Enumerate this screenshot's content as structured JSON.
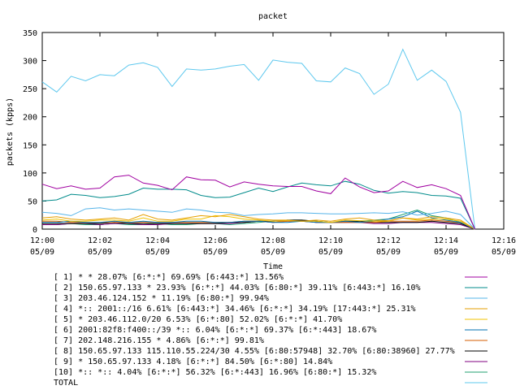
{
  "chart_data": {
    "type": "line",
    "title": "packet",
    "xlabel": "Time",
    "ylabel": "packets (kpps)",
    "ylim": [
      0,
      350
    ],
    "yticks": [
      0,
      50,
      100,
      150,
      200,
      250,
      300,
      350
    ],
    "xlim": [
      "12:00",
      "12:16"
    ],
    "xticks": [
      {
        "time": "12:00",
        "date": "05/09"
      },
      {
        "time": "12:02",
        "date": "05/09"
      },
      {
        "time": "12:04",
        "date": "05/09"
      },
      {
        "time": "12:06",
        "date": "05/09"
      },
      {
        "time": "12:08",
        "date": "05/09"
      },
      {
        "time": "12:10",
        "date": "05/09"
      },
      {
        "time": "12:12",
        "date": "05/09"
      },
      {
        "time": "12:14",
        "date": "05/09"
      },
      {
        "time": "12:16",
        "date": "05/09"
      }
    ],
    "grid": false,
    "legend_position": "bottom",
    "x": [
      "12:00:00",
      "12:00:30",
      "12:01:00",
      "12:01:30",
      "12:02:00",
      "12:02:30",
      "12:03:00",
      "12:03:30",
      "12:04:00",
      "12:04:30",
      "12:05:00",
      "12:05:30",
      "12:06:00",
      "12:06:30",
      "12:07:00",
      "12:07:30",
      "12:08:00",
      "12:08:30",
      "12:09:00",
      "12:09:30",
      "12:10:00",
      "12:10:30",
      "12:11:00",
      "12:11:30",
      "12:12:00",
      "12:12:30",
      "12:13:00",
      "12:13:30",
      "12:14:00",
      "12:14:30",
      "12:15:00"
    ],
    "series": [
      {
        "name": "[ 1] * * 28.07%  [6:*:*] 69.69% [6:443:*] 13.56%",
        "color": "#a000a0",
        "values": [
          80,
          72,
          77,
          71,
          73,
          93,
          96,
          82,
          78,
          70,
          93,
          88,
          87,
          75,
          84,
          80,
          77,
          76,
          76,
          68,
          63,
          91,
          75,
          65,
          68,
          85,
          74,
          79,
          72,
          60,
          0
        ]
      },
      {
        "name": "[ 2] 150.65.97.133 * 23.93%  [6:*:*] 44.03% [6:80:*] 39.11% [6:443:*] 16.10%",
        "color": "#008b8b",
        "values": [
          50,
          52,
          62,
          60,
          56,
          58,
          62,
          73,
          71,
          71,
          70,
          60,
          56,
          57,
          65,
          73,
          67,
          75,
          82,
          79,
          77,
          85,
          80,
          69,
          64,
          67,
          65,
          60,
          59,
          55,
          0
        ]
      },
      {
        "name": "[ 3] 203.46.124.152 * 11.19%  [6:80:*] 99.94%",
        "color": "#56b4e9",
        "values": [
          30,
          28,
          24,
          36,
          38,
          34,
          36,
          34,
          32,
          30,
          36,
          34,
          30,
          29,
          24,
          26,
          27,
          29,
          29,
          28,
          27,
          27,
          28,
          29,
          28,
          31,
          25,
          28,
          32,
          26,
          0
        ]
      },
      {
        "name": "[ 4] *:: 2001::/16 6.61%  [6:443:*] 34.46% [6:*:*] 34.19% [17:443:*] 25.31%",
        "color": "#e69f00",
        "values": [
          20,
          22,
          18,
          16,
          18,
          20,
          16,
          26,
          18,
          16,
          20,
          24,
          22,
          26,
          22,
          18,
          16,
          16,
          14,
          16,
          14,
          18,
          20,
          16,
          15,
          20,
          18,
          22,
          20,
          16,
          0
        ]
      },
      {
        "name": "[ 5] * 203.46.112.0/20 6.53%  [6:*:80] 52.02% [6:*:*] 41.70%",
        "color": "#f0c300",
        "values": [
          16,
          18,
          14,
          14,
          16,
          16,
          14,
          20,
          14,
          14,
          18,
          18,
          24,
          22,
          18,
          16,
          14,
          15,
          14,
          14,
          12,
          16,
          15,
          14,
          14,
          20,
          16,
          18,
          18,
          14,
          0
        ]
      },
      {
        "name": "[ 6] 2001:82f8:f400::/39 *:: 6.04%  [6:*:*] 69.37% [6:*:443] 18.67%",
        "color": "#0072b2",
        "values": [
          12,
          12,
          14,
          12,
          12,
          14,
          12,
          14,
          12,
          12,
          14,
          14,
          12,
          12,
          14,
          14,
          12,
          12,
          14,
          12,
          12,
          14,
          12,
          14,
          18,
          22,
          32,
          20,
          16,
          12,
          0
        ]
      },
      {
        "name": "[ 7] 202.148.216.155 * 4.86%  [6:*:*] 99.81%",
        "color": "#d55e00",
        "values": [
          14,
          14,
          12,
          12,
          12,
          12,
          12,
          12,
          12,
          12,
          12,
          12,
          12,
          12,
          14,
          14,
          12,
          14,
          14,
          12,
          12,
          12,
          12,
          12,
          14,
          14,
          14,
          16,
          14,
          12,
          0
        ]
      },
      {
        "name": "[ 8] 150.65.97.133 115.110.55.224/30 4.55%  [6:80:57948] 32.70% [6:80:38960] 27.77%",
        "color": "#000000",
        "values": [
          10,
          10,
          10,
          10,
          10,
          12,
          10,
          10,
          10,
          10,
          10,
          10,
          10,
          12,
          12,
          14,
          14,
          16,
          16,
          14,
          12,
          14,
          14,
          12,
          12,
          12,
          12,
          14,
          12,
          10,
          0
        ]
      },
      {
        "name": "[ 9] * 150.65.97.133 4.18%  [6:*:*] 84.50% [6:*:80] 14.84%",
        "color": "#800080",
        "values": [
          8,
          8,
          10,
          10,
          8,
          10,
          10,
          8,
          8,
          10,
          10,
          10,
          10,
          10,
          12,
          14,
          12,
          14,
          14,
          12,
          12,
          12,
          12,
          10,
          10,
          12,
          12,
          12,
          10,
          8,
          0
        ]
      },
      {
        "name": "[10] *:: *:: 4.04%  [6:*:*] 56.32% [6:*:443] 16.96% [6:80:*] 15.32%",
        "color": "#20a070",
        "values": [
          8,
          8,
          10,
          8,
          8,
          10,
          8,
          8,
          10,
          8,
          8,
          10,
          10,
          8,
          10,
          12,
          14,
          16,
          16,
          14,
          12,
          12,
          14,
          16,
          18,
          26,
          34,
          24,
          20,
          12,
          0
        ]
      },
      {
        "name": "TOTAL",
        "color": "#5ec8ee",
        "values": [
          262,
          244,
          272,
          264,
          275,
          273,
          292,
          296,
          288,
          254,
          285,
          283,
          285,
          290,
          293,
          265,
          301,
          297,
          295,
          264,
          262,
          287,
          277,
          240,
          258,
          320,
          265,
          283,
          263,
          208,
          0
        ]
      }
    ]
  }
}
